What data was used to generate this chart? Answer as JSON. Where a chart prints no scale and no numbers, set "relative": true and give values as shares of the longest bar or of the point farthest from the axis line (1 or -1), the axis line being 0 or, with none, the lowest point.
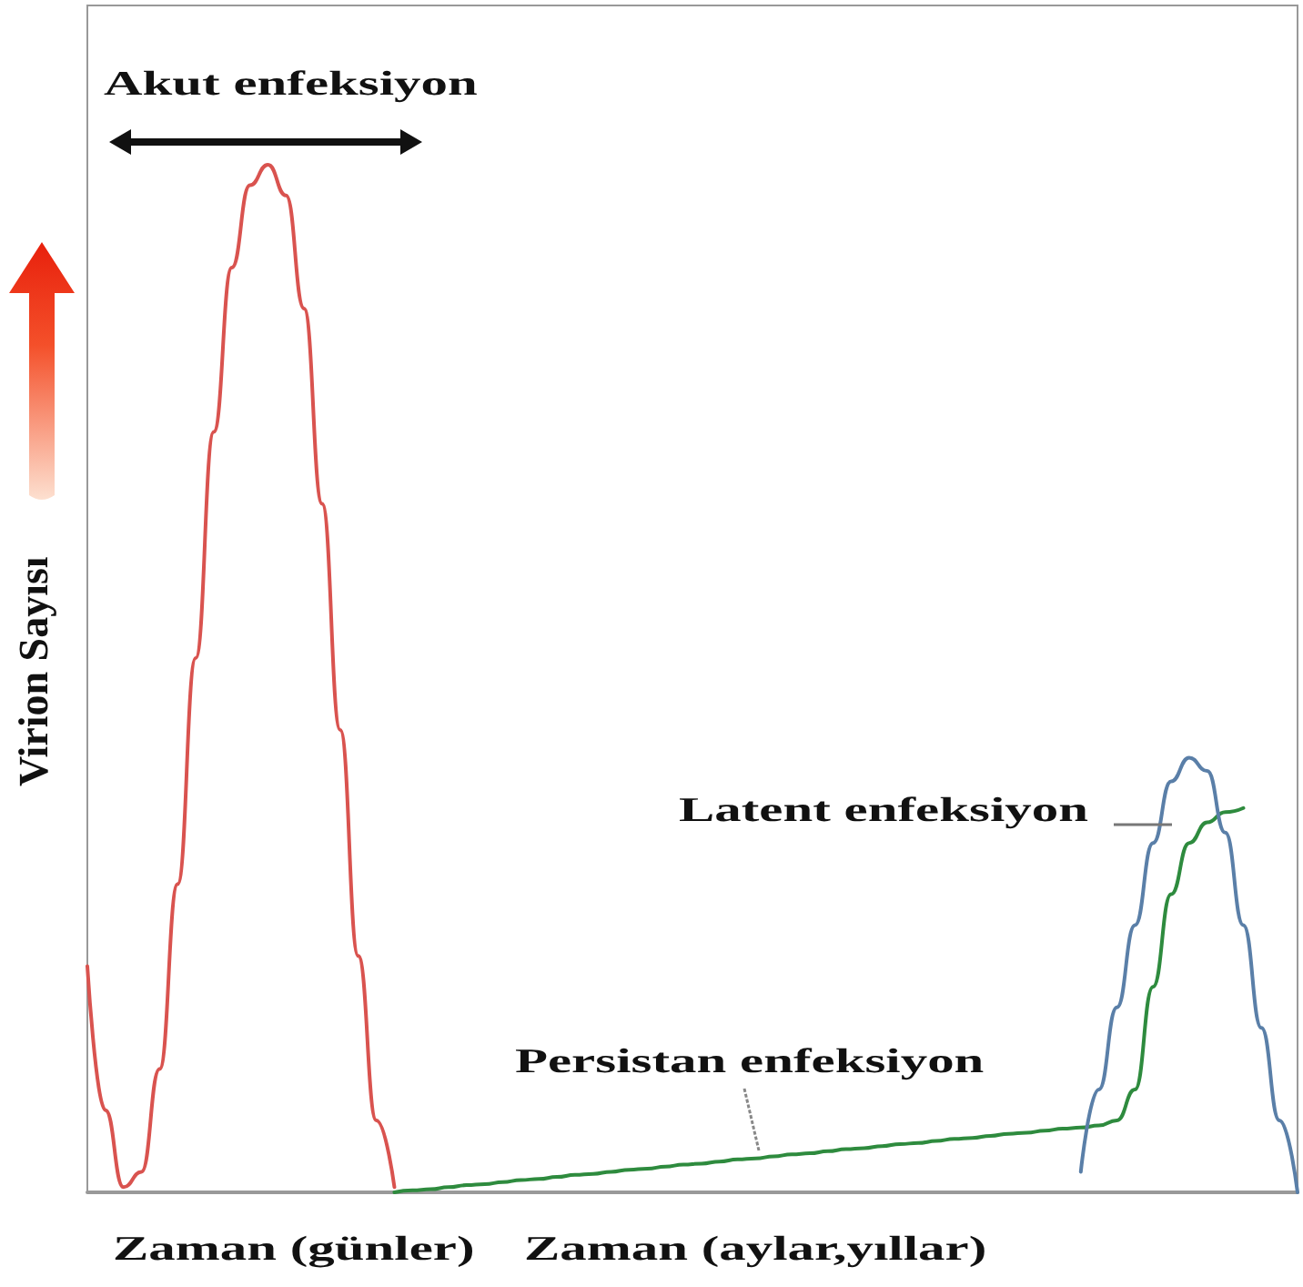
{
  "chart_data": {
    "type": "line",
    "relative": true,
    "ylabel": "Virion Sayısı",
    "xlabel": "Zaman (günler)",
    "annotations": [
      "Akut enfeksiyon",
      "Latent enfeksiyon",
      "Persistan enfeksiyon",
      "Zaman (aylar,yıllar)"
    ],
    "categories": [
      null,
      null,
      null,
      null,
      null,
      null,
      null,
      null,
      null,
      null,
      null,
      null,
      null,
      null,
      null,
      null,
      null,
      null,
      null,
      null,
      null,
      null,
      null,
      null,
      null,
      null,
      null,
      null,
      null,
      null,
      null,
      null,
      null,
      null,
      null,
      null,
      null,
      null,
      null,
      null,
      null,
      null,
      null,
      null,
      null,
      null,
      null,
      null,
      null,
      null,
      null,
      null,
      null,
      null,
      null,
      null,
      null,
      null,
      null,
      null,
      null,
      null,
      null,
      null,
      null,
      null,
      null,
      null
    ],
    "marker": "none",
    "line_style": "solid",
    "grid": false,
    "series": [
      {
        "color": "#d9534f",
        "values": [
          0.22,
          0.08,
          0.005,
          0.02,
          0.12,
          0.3,
          0.52,
          0.74,
          0.9,
          0.98,
          1.0,
          0.97,
          0.86,
          0.67,
          0.45,
          0.23,
          0.07,
          0.005,
          null,
          null,
          null,
          null,
          null,
          null,
          null,
          null,
          null,
          null,
          null,
          null,
          null,
          null,
          null,
          null,
          null,
          null,
          null,
          null,
          null,
          null,
          null,
          null,
          null,
          null,
          null,
          null,
          null,
          null,
          null,
          null,
          null,
          null,
          null,
          null,
          null,
          null,
          null,
          null,
          null,
          null,
          null,
          null,
          null,
          null,
          null,
          null,
          null,
          null
        ]
      },
      {
        "color": "#2e8b3e",
        "values": [
          null,
          null,
          null,
          null,
          null,
          null,
          null,
          null,
          null,
          null,
          null,
          null,
          null,
          null,
          null,
          null,
          null,
          0,
          0.002,
          0.003,
          0.005,
          0.007,
          0.008,
          0.01,
          0.012,
          0.013,
          0.015,
          0.017,
          0.018,
          0.02,
          0.022,
          0.023,
          0.025,
          0.027,
          0.028,
          0.03,
          0.032,
          0.033,
          0.035,
          0.037,
          0.038,
          0.04,
          0.042,
          0.043,
          0.045,
          0.047,
          0.048,
          0.05,
          0.052,
          0.053,
          0.055,
          0.057,
          0.058,
          0.06,
          0.062,
          0.063,
          0.065,
          0.07,
          0.1,
          0.2,
          0.29,
          0.34,
          0.36,
          0.37,
          0.374,
          null,
          null,
          null
        ]
      },
      {
        "color": "#5a7fa8",
        "values": [
          null,
          null,
          null,
          null,
          null,
          null,
          null,
          null,
          null,
          null,
          null,
          null,
          null,
          null,
          null,
          null,
          null,
          null,
          null,
          null,
          null,
          null,
          null,
          null,
          null,
          null,
          null,
          null,
          null,
          null,
          null,
          null,
          null,
          null,
          null,
          null,
          null,
          null,
          null,
          null,
          null,
          null,
          null,
          null,
          null,
          null,
          null,
          null,
          null,
          null,
          null,
          null,
          null,
          null,
          null,
          0.02,
          0.1,
          0.18,
          0.26,
          0.34,
          0.4,
          0.423,
          0.41,
          0.35,
          0.26,
          0.16,
          0.07,
          0
        ]
      }
    ]
  }
}
